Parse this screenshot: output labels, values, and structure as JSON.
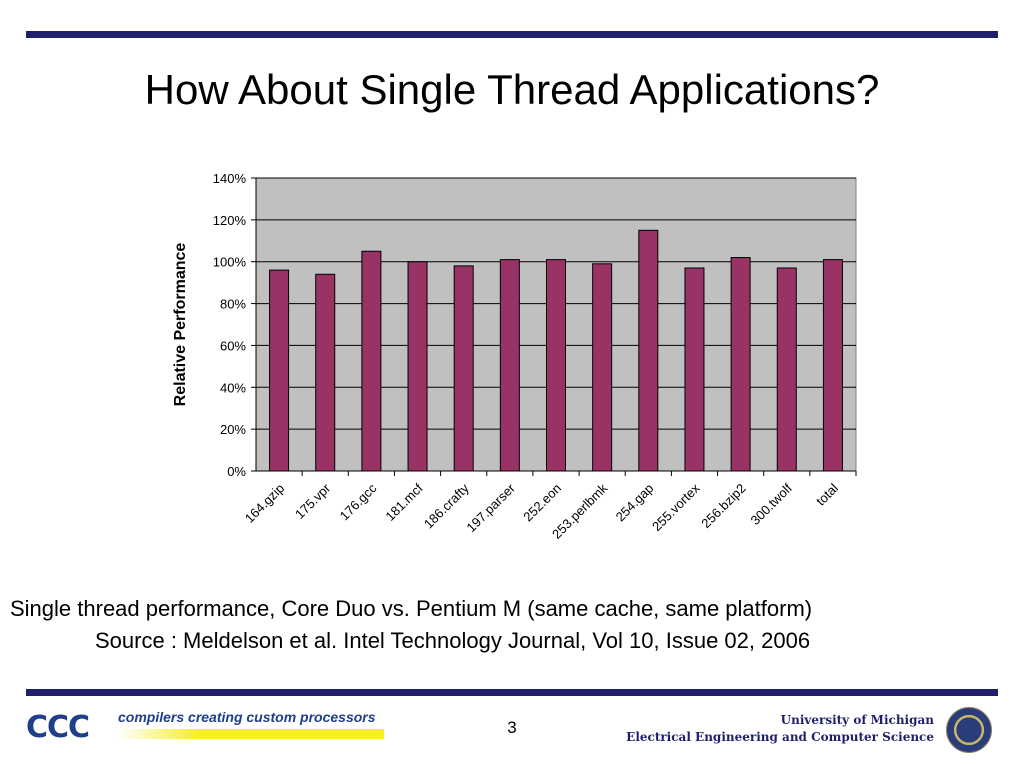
{
  "slide": {
    "title": "How About Single Thread Applications?",
    "caption_line1": "Single thread performance, Core Duo vs. Pentium M (same cache, same platform)",
    "caption_line2": "Source : Meldelson et al. Intel Technology Journal, Vol 10, Issue 02, 2006",
    "page_number": "3"
  },
  "footer": {
    "logo_mark": "CCC",
    "logo_tagline": "compilers creating custom processors",
    "university": "University of Michigan",
    "department": "Electrical Engineering and Computer Science"
  },
  "colors": {
    "bar": "#993366",
    "plot_background": "#c0c0c0",
    "rule": "#1f1f6e"
  },
  "chart_data": {
    "type": "bar",
    "title": "",
    "xlabel": "",
    "ylabel": "Relative Performance",
    "categories": [
      "164.gzip",
      "175.vpr",
      "176.gcc",
      "181.mcf",
      "186.crafty",
      "197.parser",
      "252.eon",
      "253.perlbmk",
      "254.gap",
      "255.vortex",
      "256.bzip2",
      "300.twolf",
      "total"
    ],
    "values": [
      96,
      94,
      105,
      100,
      98,
      101,
      101,
      99,
      115,
      97,
      102,
      97,
      101
    ],
    "ylim": [
      0,
      140
    ],
    "yticks": [
      "0%",
      "20%",
      "40%",
      "60%",
      "80%",
      "100%",
      "120%",
      "140%"
    ],
    "grid": true,
    "legend": "none"
  }
}
